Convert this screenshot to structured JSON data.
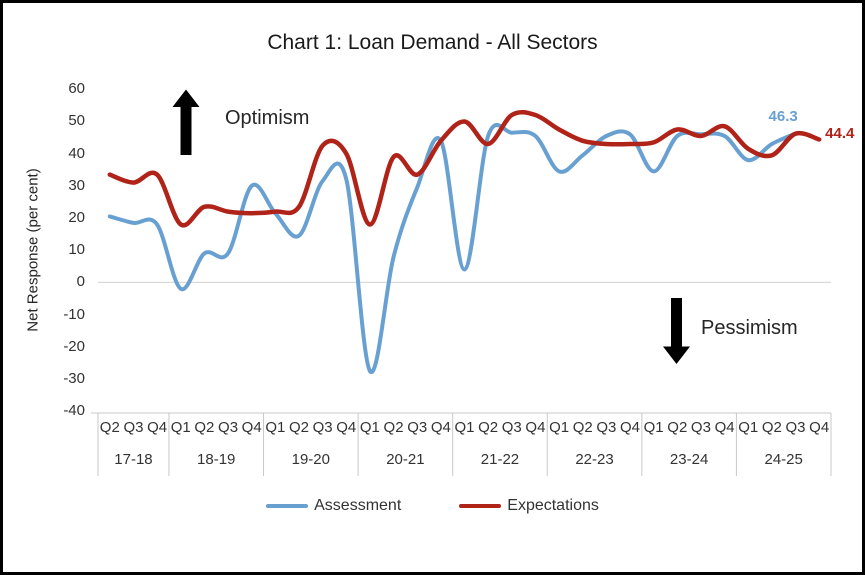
{
  "chart_data": {
    "type": "line",
    "title": "Chart 1: Loan Demand - All Sectors",
    "ylabel": "Net Response (per cent)",
    "ylim": [
      -40,
      60
    ],
    "yticks": [
      60,
      50,
      40,
      30,
      20,
      10,
      0,
      -10,
      -20,
      -30,
      -40
    ],
    "grid": "horizontal line at zero only",
    "legend_position": "bottom",
    "year_groups": [
      {
        "label": "17-18",
        "quarters": [
          "Q2",
          "Q3",
          "Q4"
        ]
      },
      {
        "label": "18-19",
        "quarters": [
          "Q1",
          "Q2",
          "Q3",
          "Q4"
        ]
      },
      {
        "label": "19-20",
        "quarters": [
          "Q1",
          "Q2",
          "Q3",
          "Q4"
        ]
      },
      {
        "label": "20-21",
        "quarters": [
          "Q1",
          "Q2",
          "Q3",
          "Q4"
        ]
      },
      {
        "label": "21-22",
        "quarters": [
          "Q1",
          "Q2",
          "Q3",
          "Q4"
        ]
      },
      {
        "label": "22-23",
        "quarters": [
          "Q1",
          "Q2",
          "Q3",
          "Q4"
        ]
      },
      {
        "label": "23-24",
        "quarters": [
          "Q1",
          "Q2",
          "Q3",
          "Q4"
        ]
      },
      {
        "label": "24-25",
        "quarters": [
          "Q1",
          "Q2",
          "Q3",
          "Q4"
        ]
      }
    ],
    "series": [
      {
        "name": "Assessment",
        "color": "#69A0D2",
        "values": [
          20.5,
          18.5,
          18,
          -2,
          9,
          9,
          30,
          21.5,
          14.5,
          31.5,
          32,
          -27.5,
          8,
          29.5,
          44,
          4,
          45.5,
          46.5,
          45.5,
          34.5,
          39.5,
          45.5,
          46,
          34.5,
          45.5,
          46,
          45.5,
          38,
          43,
          46.3,
          null
        ]
      },
      {
        "name": "Expectations",
        "color": "#B02318",
        "values": [
          33.5,
          31,
          33.5,
          18,
          23.5,
          22,
          21.5,
          22,
          23.5,
          42.5,
          40,
          18,
          39,
          33.5,
          44,
          50,
          43,
          52,
          52,
          47.5,
          44,
          43,
          43,
          43.5,
          47.5,
          45.5,
          48.5,
          41.5,
          39.5,
          46.2,
          44.4
        ]
      }
    ],
    "end_labels": [
      {
        "text": "46.3",
        "series": "Assessment",
        "color": "#69A0D2"
      },
      {
        "text": "44.4",
        "series": "Expectations",
        "color": "#B02318"
      }
    ],
    "annotations": [
      {
        "text": "Optimism",
        "arrow": "up"
      },
      {
        "text": "Pessimism",
        "arrow": "down"
      }
    ]
  }
}
